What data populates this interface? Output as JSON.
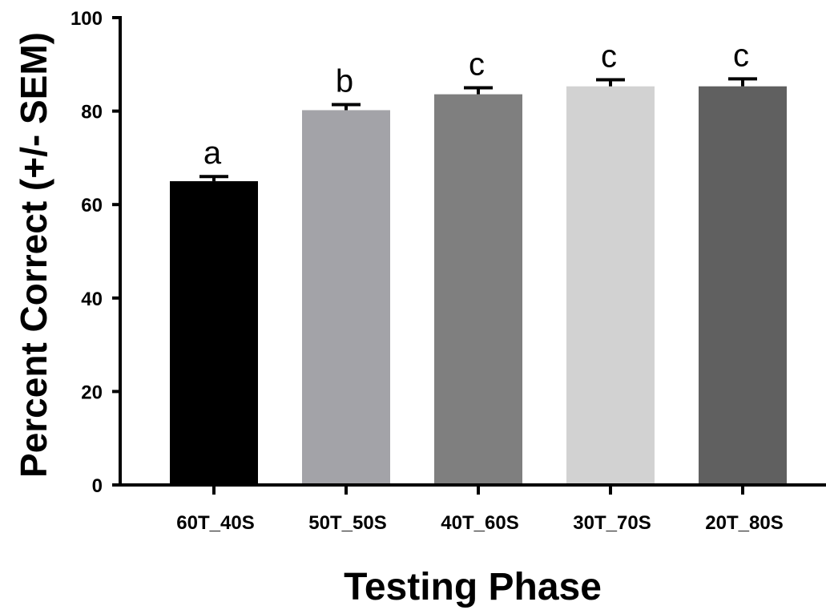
{
  "chart_data": {
    "type": "bar",
    "title": "",
    "xlabel": "Testing Phase",
    "ylabel": "Percent  Correct (+/- SEM)",
    "ylim": [
      0,
      100
    ],
    "yticks": [
      "0",
      "20",
      "40",
      "60",
      "80",
      "100"
    ],
    "grid": false,
    "categories": [
      "60T_40S",
      "50T_50S",
      "40T_60S",
      "30T_70S",
      "20T_80S"
    ],
    "values": [
      65.0,
      80.2,
      83.6,
      85.3,
      85.3
    ],
    "sem": [
      1.0,
      1.2,
      1.4,
      1.4,
      1.6
    ],
    "significance_letters": [
      "a",
      "b",
      "c",
      "c",
      "c"
    ],
    "bar_colors": [
      "#000000",
      "#a3a3a8",
      "#7f7f7f",
      "#d2d2d2",
      "#606060"
    ]
  }
}
